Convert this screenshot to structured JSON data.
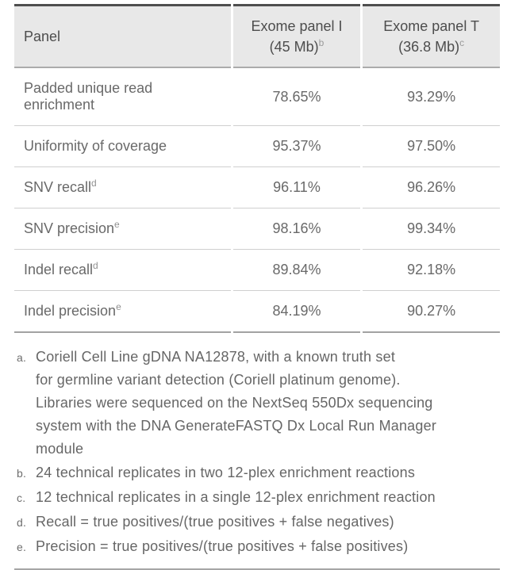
{
  "table": {
    "header": {
      "panel": "Panel",
      "exome_i": {
        "line1": "Exome panel I",
        "line2": "(45 Mb)",
        "sup": "b"
      },
      "exome_t": {
        "line1": "Exome panel T",
        "line2": "(36.8 Mb)",
        "sup": "c"
      }
    },
    "rows": [
      {
        "label": "Padded unique read enrichment",
        "sup": "",
        "panel_i": "78.65%",
        "panel_t": "93.29%"
      },
      {
        "label": "Uniformity of coverage",
        "sup": "",
        "panel_i": "95.37%",
        "panel_t": "97.50%"
      },
      {
        "label": "SNV recall",
        "sup": "d",
        "panel_i": "96.11%",
        "panel_t": "96.26%"
      },
      {
        "label": "SNV precision",
        "sup": "e",
        "panel_i": "98.16%",
        "panel_t": "99.34%"
      },
      {
        "label": "Indel recall",
        "sup": "d",
        "panel_i": "89.84%",
        "panel_t": "92.18%"
      },
      {
        "label": "Indel precision",
        "sup": "e",
        "panel_i": "84.19%",
        "panel_t": "90.27%"
      }
    ]
  },
  "footnotes": [
    {
      "marker": "a.",
      "lines": [
        "Coriell Cell Line gDNA NA12878, with a known truth set",
        "for germline variant detection (Coriell platinum genome).",
        "Libraries were sequenced on the NextSeq 550Dx sequencing",
        "system with the DNA GenerateFASTQ Dx Local Run Manager",
        "module"
      ]
    },
    {
      "marker": "b.",
      "lines": [
        "24 technical replicates in two 12-plex enrichment reactions"
      ]
    },
    {
      "marker": "c.",
      "lines": [
        "12 technical replicates in a single 12-plex enrichment reaction"
      ]
    },
    {
      "marker": "d.",
      "lines": [
        "Recall = true positives/(true positives + false negatives)"
      ]
    },
    {
      "marker": "e.",
      "lines": [
        "Precision = true positives/(true positives + false positives)"
      ]
    }
  ],
  "chart_data": {
    "type": "table",
    "columns": [
      "Panel",
      "Exome panel I (45 Mb)ᵇ",
      "Exome panel T (36.8 Mb)ᶜ"
    ],
    "rows": [
      [
        "Padded unique read enrichment",
        "78.65%",
        "93.29%"
      ],
      [
        "Uniformity of coverage",
        "95.37%",
        "97.50%"
      ],
      [
        "SNV recallᵈ",
        "96.11%",
        "96.26%"
      ],
      [
        "SNV precisionᵉ",
        "98.16%",
        "99.34%"
      ],
      [
        "Indel recallᵈ",
        "89.84%",
        "92.18%"
      ],
      [
        "Indel precisionᵉ",
        "84.19%",
        "90.27%"
      ]
    ]
  },
  "colors": {
    "header_background": "#e8e8e8",
    "top_rule": "#4f4f4f",
    "header_rule": "#ababab",
    "row_rule": "#cfcfcf",
    "table_bottom_rule": "#a2a2a2",
    "footer_rule": "#a6a6a6",
    "header_text": "#4d4d4d",
    "body_text": "#696969",
    "footnote_text": "#666666",
    "superscript_text": "#909090"
  }
}
